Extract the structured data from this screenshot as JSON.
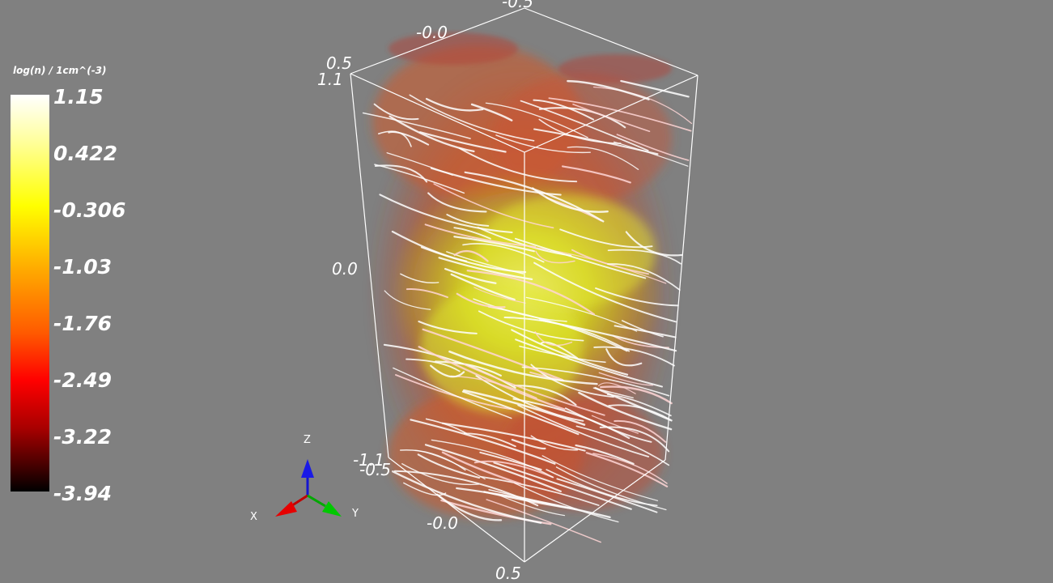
{
  "colorbar": {
    "title": "log(n) / 1cm^(-3)",
    "ticks": [
      "1.15",
      "0.422",
      "-0.306",
      "-1.03",
      "-1.76",
      "-2.49",
      "-3.22",
      "-3.94"
    ],
    "colors": [
      "#ffffff",
      "#ffff9a",
      "#ffff00",
      "#ffa500",
      "#ff5a00",
      "#ff0000",
      "#a80000",
      "#400000",
      "#000000"
    ]
  },
  "axes": {
    "top_back": "-0.5",
    "top_mid": "-0.0",
    "top_left": "0.5",
    "z_top": "1.1",
    "z_mid": "0.0",
    "z_bottom": "-1.1",
    "bottom_left": "-0.5",
    "bottom_mid": "-0.0",
    "bottom_front": "0.5"
  },
  "orientation": {
    "x": "X",
    "y": "Y",
    "z": "Z"
  },
  "colors": {
    "background": "#808080",
    "x_axis": "#e60000",
    "y_axis": "#00c800",
    "z_axis": "#0000e6",
    "streamline": "#ffffff",
    "low_density": "#d9541e",
    "high_density": "#d7e21a"
  }
}
